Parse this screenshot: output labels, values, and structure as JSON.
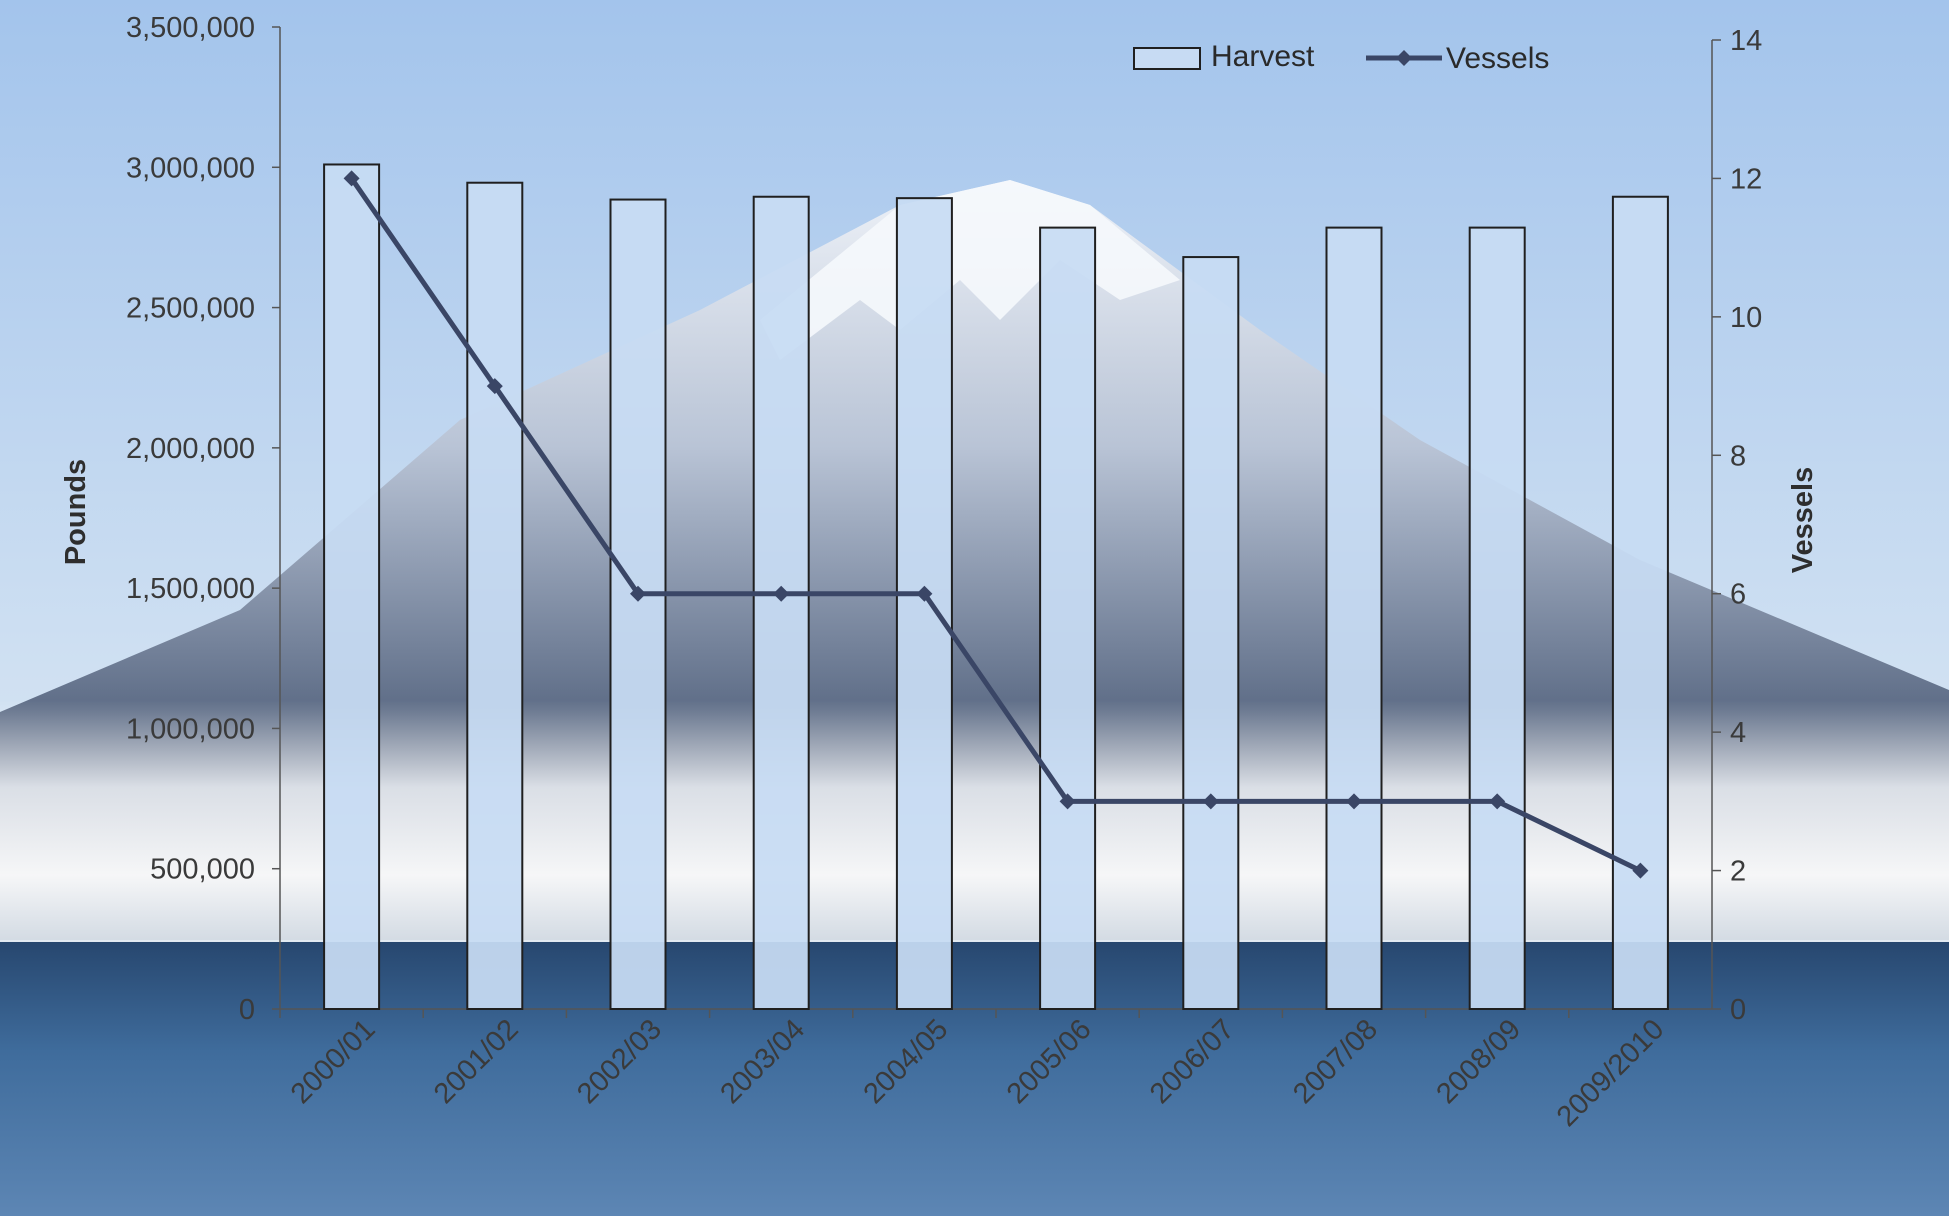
{
  "chart_data": {
    "type": "bar",
    "categories": [
      "2000/01",
      "2001/02",
      "2002/03",
      "2003/04",
      "2004/05",
      "2005/06",
      "2006/07",
      "2007/08",
      "2008/09",
      "2009/2010"
    ],
    "series": [
      {
        "name": "Harvest",
        "type": "bar",
        "axis": "left",
        "values": [
          3010000,
          2945000,
          2885000,
          2895000,
          2890000,
          2785000,
          2680000,
          2785000,
          2785000,
          2895000
        ]
      },
      {
        "name": "Vessels",
        "type": "line",
        "axis": "right",
        "values": [
          12,
          9,
          6,
          6,
          6,
          3,
          3,
          3,
          3,
          2
        ]
      }
    ],
    "ylabel": "Pounds",
    "y2label": "Vessels",
    "ylim": [
      0,
      3500000
    ],
    "y2lim": [
      0,
      14
    ],
    "yticks": [
      "0",
      "500,000",
      "1,000,000",
      "1,500,000",
      "2,000,000",
      "2,500,000",
      "3,000,000",
      "3,500,000"
    ],
    "y2ticks": [
      "0",
      "2",
      "4",
      "6",
      "8",
      "10",
      "12",
      "14"
    ],
    "legend_position": "top-right",
    "grid": false,
    "background": "photo of a snow-capped volcano above clouds and sea",
    "colors": {
      "bar_fill": "#c7dbf3",
      "bar_stroke": "#1f1f1f",
      "line": "#3a4666",
      "sky_top": "#9fc1ea",
      "sea": "#3d6a9a"
    }
  }
}
